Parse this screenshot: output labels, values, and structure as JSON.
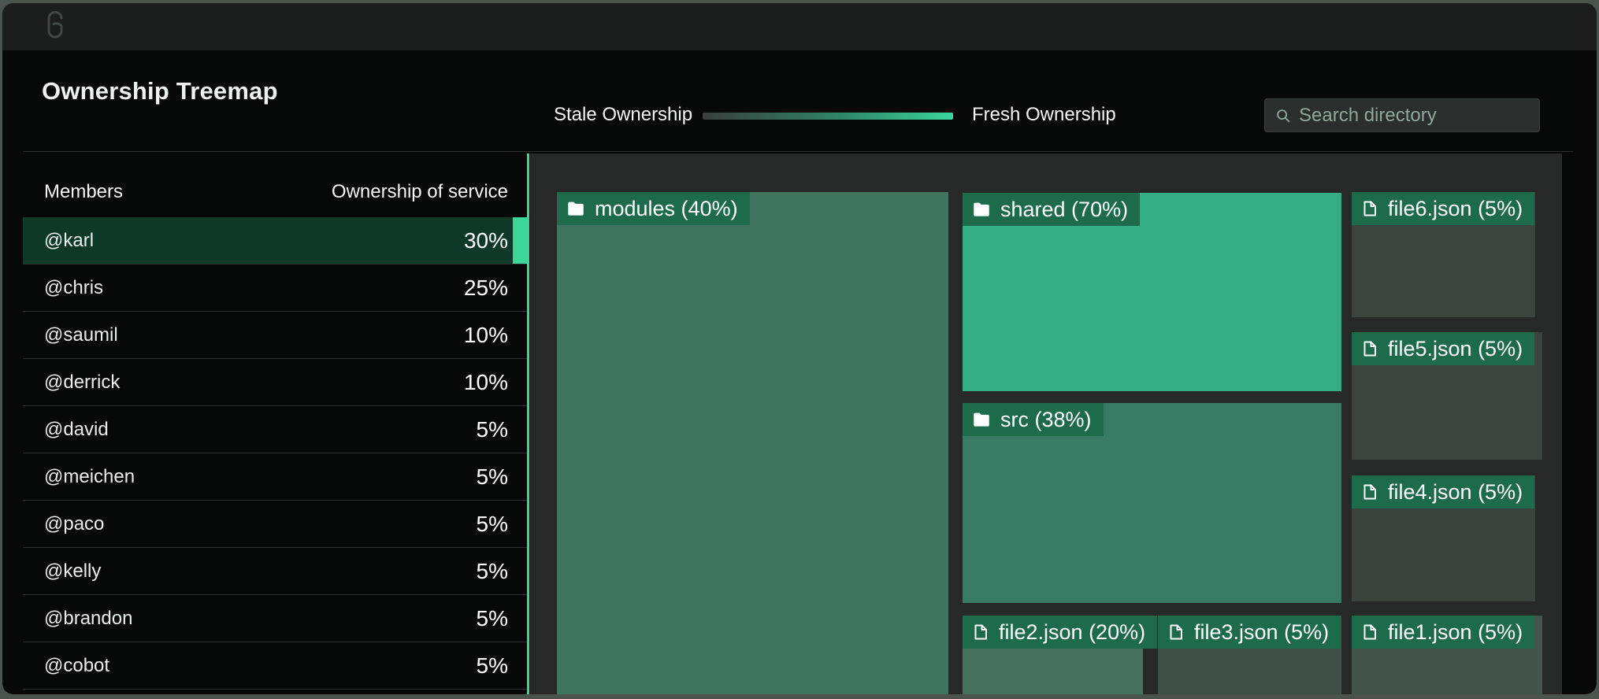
{
  "header": {
    "title": "Ownership Treemap",
    "legend": {
      "left_label": "Stale Ownership",
      "right_label": "Fresh Ownership"
    },
    "search_placeholder": "Search directory"
  },
  "members_table": {
    "columns": {
      "members": "Members",
      "ownership": "Ownership of service"
    },
    "rows": [
      {
        "name": "@karl",
        "ownership": "30%",
        "selected": true
      },
      {
        "name": "@chris",
        "ownership": "25%",
        "selected": false
      },
      {
        "name": "@saumil",
        "ownership": "10%",
        "selected": false
      },
      {
        "name": "@derrick",
        "ownership": "10%",
        "selected": false
      },
      {
        "name": "@david",
        "ownership": "5%",
        "selected": false
      },
      {
        "name": "@meichen",
        "ownership": "5%",
        "selected": false
      },
      {
        "name": "@paco",
        "ownership": "5%",
        "selected": false
      },
      {
        "name": "@kelly",
        "ownership": "5%",
        "selected": false
      },
      {
        "name": "@brandon",
        "ownership": "5%",
        "selected": false
      },
      {
        "name": "@cobot",
        "ownership": "5%",
        "selected": false
      }
    ]
  },
  "treemap": {
    "nodes": [
      {
        "id": "modules",
        "type": "folder",
        "name": "modules",
        "percent": "40%",
        "label": "modules (40%)",
        "color": "#3e7460",
        "dotted": false
      },
      {
        "id": "shared",
        "type": "folder",
        "name": "shared",
        "percent": "70%",
        "label": "shared (70%)",
        "color": "#35ad85",
        "dotted": false
      },
      {
        "id": "src",
        "type": "folder",
        "name": "src",
        "percent": "38%",
        "label": "src (38%)",
        "color": "#397a64",
        "dotted": false
      },
      {
        "id": "file2",
        "type": "file",
        "name": "file2.json",
        "percent": "20%",
        "label": "file2.json (20%)",
        "color": "#45715e",
        "dotted": true
      },
      {
        "id": "file3",
        "type": "file",
        "name": "file3.json",
        "percent": "5%",
        "label": "file3.json (5%)",
        "color": "#3f4e46",
        "dotted": false
      },
      {
        "id": "file1",
        "type": "file",
        "name": "file1.json",
        "percent": "5%",
        "label": "file1.json (5%)",
        "color": "#43544c",
        "dotted": false
      },
      {
        "id": "file6",
        "type": "file",
        "name": "file6.json",
        "percent": "5%",
        "label": "file6.json (5%)",
        "color": "#3c4440",
        "dotted": true
      },
      {
        "id": "file5",
        "type": "file",
        "name": "file5.json",
        "percent": "5%",
        "label": "file5.json (5%)",
        "color": "#3c4440",
        "dotted": false
      },
      {
        "id": "file4",
        "type": "file",
        "name": "file4.json",
        "percent": "5%",
        "label": "file4.json (5%)",
        "color": "#3b433f",
        "dotted": false
      }
    ]
  },
  "colors": {
    "accent_green": "#3dd598",
    "selected_row_bg": "#0e3827",
    "chip_green": "#1e6b4b",
    "panel_bg": "#262927",
    "topbar_bg": "#1b1e1d",
    "gradient_start": "#3a3e3c",
    "gradient_end": "#3bd49e"
  }
}
